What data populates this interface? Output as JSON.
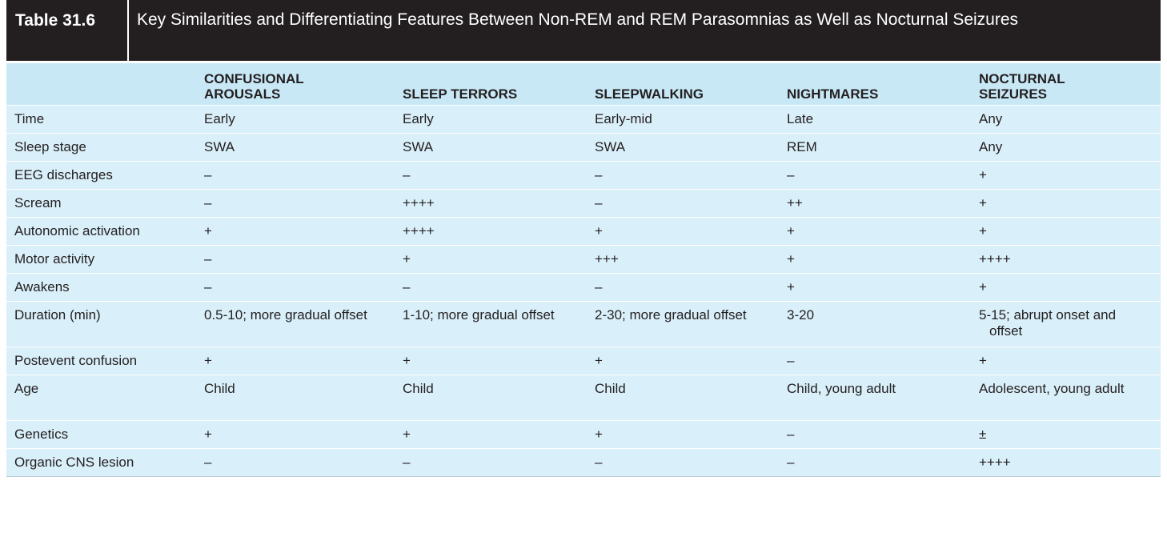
{
  "table": {
    "number": "Table 31.6",
    "title": "Key Similarities and Differentiating Features Between Non-REM and REM Parasomnias as Well as Nocturnal Seizures"
  },
  "columns": [
    "",
    "CONFUSIONAL AROUSALS",
    "SLEEP TERRORS",
    "SLEEPWALKING",
    "NIGHTMARES",
    "NOCTURNAL SEIZURES"
  ],
  "rows": [
    {
      "feature": "Time",
      "cells": [
        "Early",
        "Early",
        "Early-mid",
        "Late",
        "Any"
      ]
    },
    {
      "feature": "Sleep stage",
      "cells": [
        "SWA",
        "SWA",
        "SWA",
        "REM",
        "Any"
      ]
    },
    {
      "feature": "EEG discharges",
      "cells": [
        "–",
        "–",
        "–",
        "–",
        "+"
      ]
    },
    {
      "feature": "Scream",
      "cells": [
        "–",
        "++++",
        "–",
        "++",
        "+"
      ]
    },
    {
      "feature": "Autonomic activation",
      "cells": [
        "+",
        "++++",
        "+",
        "+",
        "+"
      ]
    },
    {
      "feature": "Motor activity",
      "cells": [
        "–",
        "+",
        "+++",
        "+",
        "++++"
      ]
    },
    {
      "feature": "Awakens",
      "cells": [
        "–",
        "–",
        "–",
        "+",
        "+"
      ]
    },
    {
      "feature": "Duration (min)",
      "cells": [
        "0.5-10; more gradual offset",
        "1-10; more gradual offset",
        "2-30; more gradual offset",
        "3-20",
        "5-15; abrupt onset and offset"
      ]
    },
    {
      "feature": "Postevent confusion",
      "cells": [
        "+",
        "+",
        "+",
        "–",
        "+"
      ]
    },
    {
      "feature": "Age",
      "cells": [
        "Child",
        "Child",
        "Child",
        "Child, young adult",
        "Adolescent, young adult"
      ]
    },
    {
      "feature": "Genetics",
      "cells": [
        "+",
        "+",
        "+",
        "–",
        "±"
      ]
    },
    {
      "feature": "Organic CNS lesion",
      "cells": [
        "–",
        "–",
        "–",
        "–",
        "++++"
      ]
    }
  ]
}
